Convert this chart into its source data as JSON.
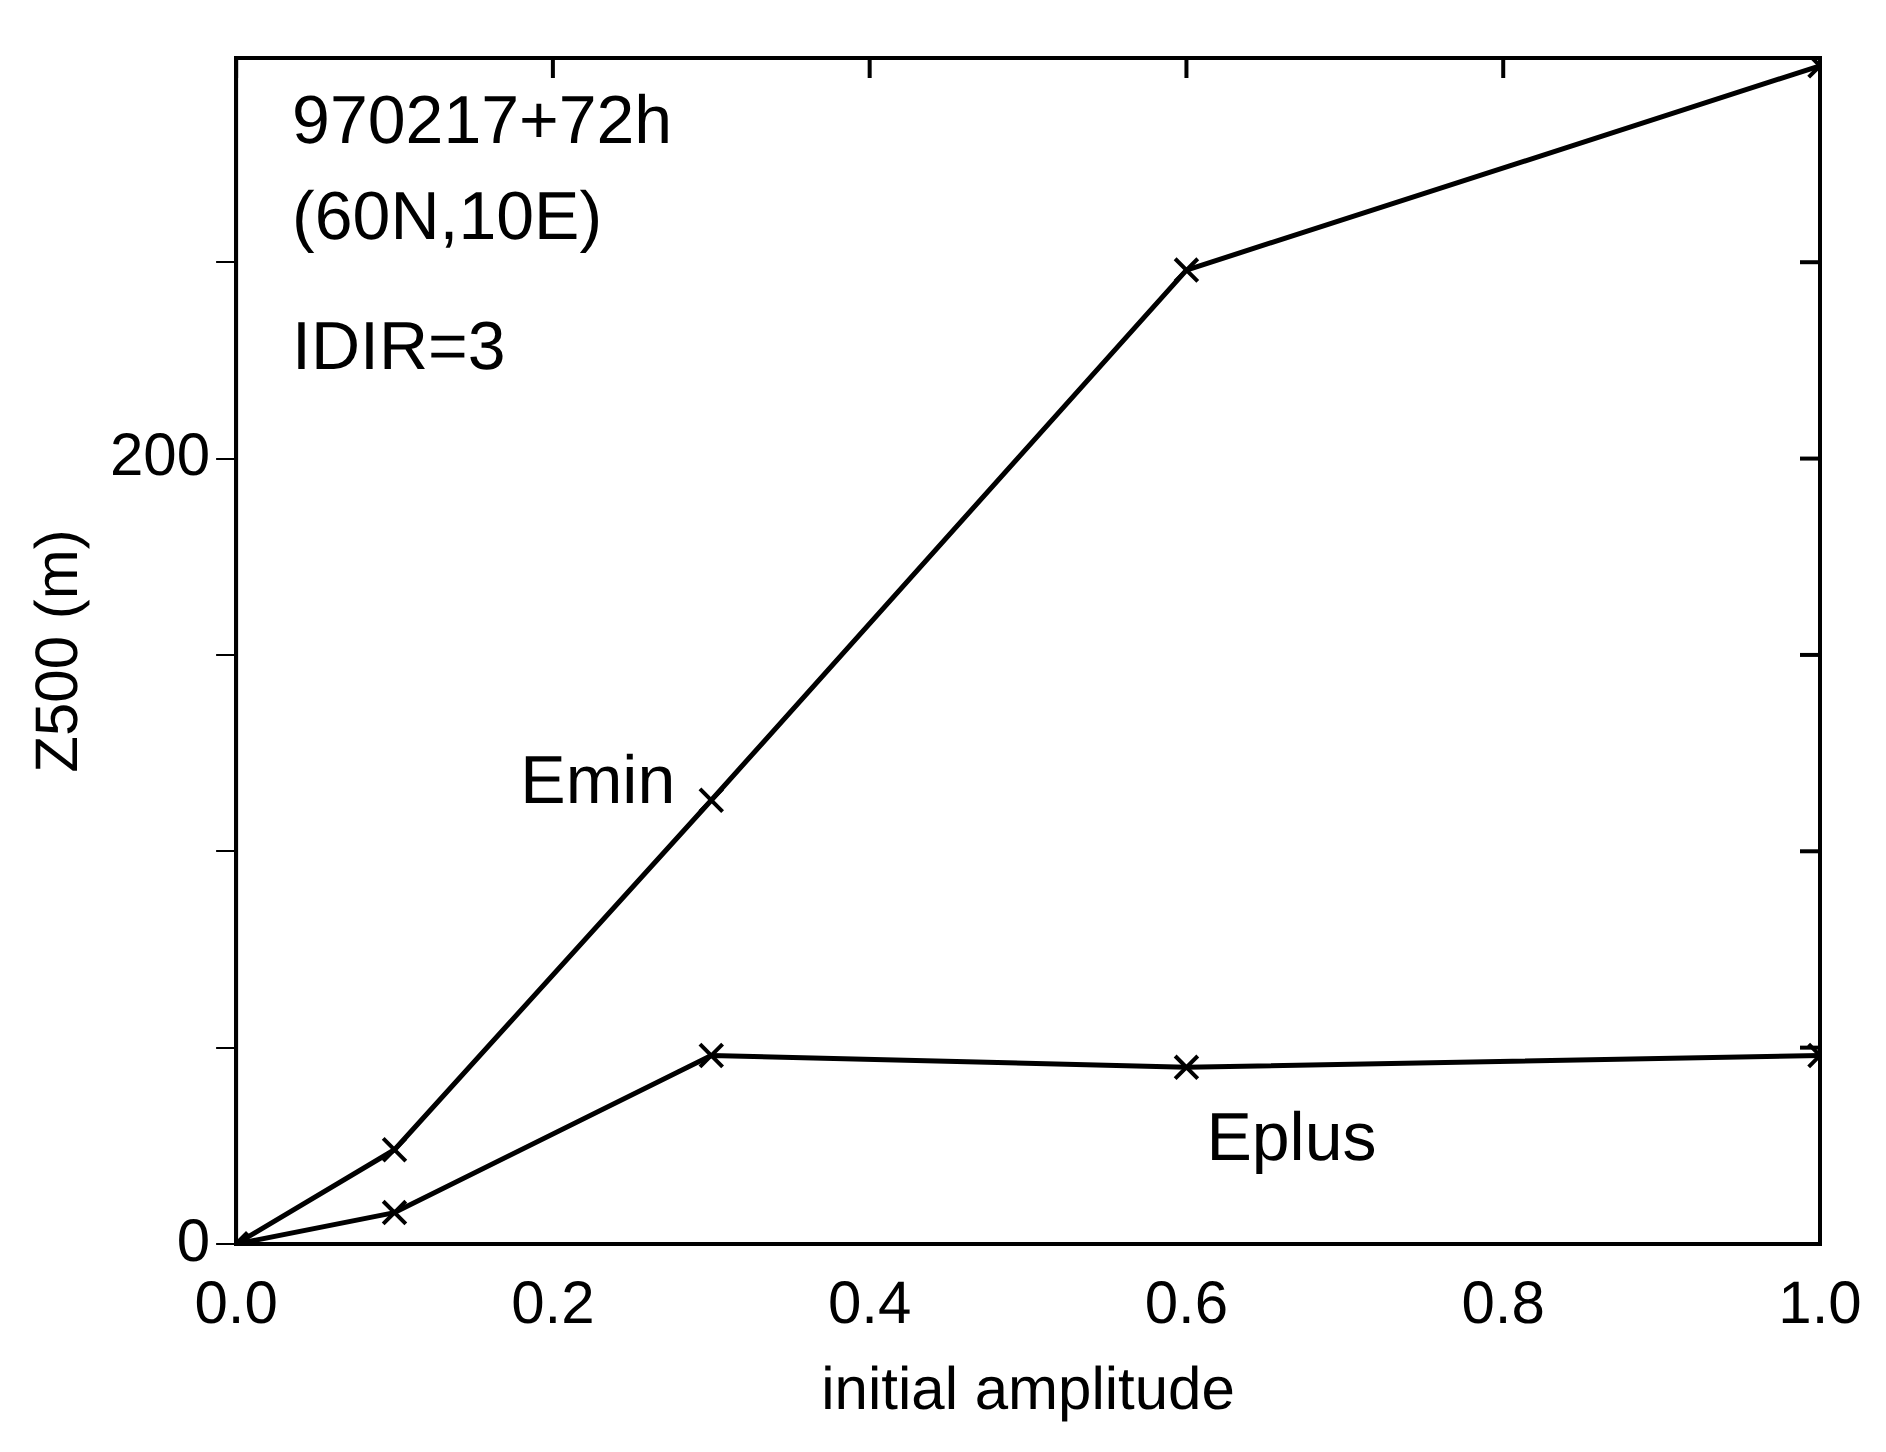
{
  "chart_data": {
    "type": "line",
    "xlabel": "initial amplitude",
    "ylabel": "Z500 (m)",
    "annotations": [
      "970217+72h",
      "(60N,10E)",
      "IDIR=3"
    ],
    "x": [
      0,
      0.1,
      0.3,
      0.6,
      1.0
    ],
    "series": [
      {
        "name": "Emin",
        "color": "#000000",
        "values": [
          0,
          24,
          113,
          248,
          300
        ]
      },
      {
        "name": "Eplus",
        "color": "#000000",
        "values": [
          0,
          8,
          48,
          45,
          48
        ]
      }
    ],
    "xlim": [
      0,
      1
    ],
    "xticks": [
      {
        "value": 0,
        "label": "0.0"
      },
      {
        "value": 0.2,
        "label": "0.2"
      },
      {
        "value": 0.4,
        "label": "0.4"
      },
      {
        "value": 0.6,
        "label": "0.6"
      },
      {
        "value": 0.8,
        "label": "0.8"
      },
      {
        "value": 1,
        "label": "1.0"
      }
    ],
    "ylim": [
      0,
      302
    ],
    "yticks": [
      0,
      {
        "value": 50,
        "label": null
      },
      {
        "value": 100,
        "label": null
      },
      {
        "value": 150,
        "label": null
      },
      200,
      {
        "value": 250,
        "label": null
      }
    ],
    "grid": false,
    "legend": false,
    "marker": "cross",
    "line_style": "solid"
  }
}
